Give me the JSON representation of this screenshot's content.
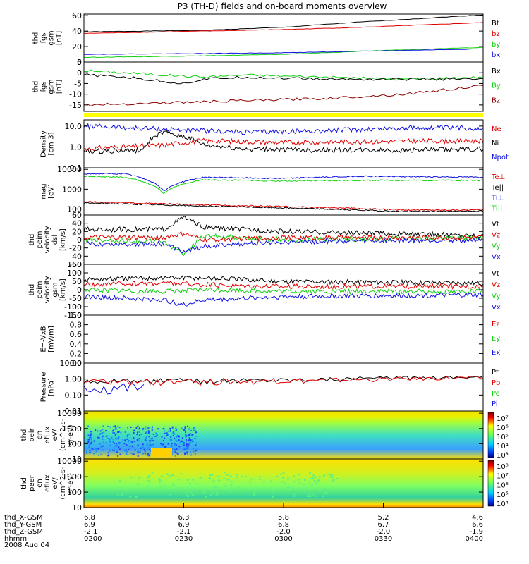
{
  "title": "P3 (TH-D) fields and on-board moments overview",
  "date": "2008 Aug 04",
  "colors": {
    "black": "#000000",
    "red": "#e00000",
    "blue": "#1010e0",
    "green": "#10d010",
    "darkred": "#8b0000",
    "yellow": "#ffff00"
  },
  "chart_data": [
    {
      "type": "line",
      "ylabel": [
        "thd",
        "fgs",
        "gsm",
        "[nT]"
      ],
      "yticks": [
        0,
        20,
        40,
        60
      ],
      "ylim": [
        0,
        62
      ],
      "legend": [
        {
          "name": "Bt",
          "color": "black"
        },
        {
          "name": "bz",
          "color": "red"
        },
        {
          "name": "by",
          "color": "green"
        },
        {
          "name": "bx",
          "color": "blue"
        }
      ],
      "series": [
        {
          "name": "Bt",
          "color": "black",
          "x": [
            0,
            0.3,
            0.5,
            0.7,
            1
          ],
          "y": [
            39,
            41,
            45,
            52,
            61
          ]
        },
        {
          "name": "bz",
          "color": "red",
          "x": [
            0,
            0.3,
            0.5,
            0.7,
            1
          ],
          "y": [
            37,
            40,
            42,
            45,
            51
          ]
        },
        {
          "name": "by",
          "color": "green",
          "x": [
            0,
            0.3,
            0.5,
            0.7,
            1
          ],
          "y": [
            6,
            8,
            10,
            14,
            19
          ]
        },
        {
          "name": "bx",
          "color": "blue",
          "x": [
            0,
            0.3,
            0.5,
            0.7,
            1
          ],
          "y": [
            10,
            11,
            12,
            14,
            17
          ]
        }
      ]
    },
    {
      "type": "line",
      "ylabel": [
        "thd",
        "fgs",
        "gsm",
        "[nT]"
      ],
      "yticks": [
        -15,
        -10,
        -5,
        0,
        5
      ],
      "ylim": [
        -18,
        5
      ],
      "legend": [
        {
          "name": "Bx",
          "color": "black"
        },
        {
          "name": "By",
          "color": "green"
        },
        {
          "name": "Bz",
          "color": "darkred"
        }
      ],
      "series": [
        {
          "name": "By",
          "color": "green",
          "x": [
            0,
            0.1,
            0.2,
            0.3,
            0.4,
            0.6,
            0.8,
            1
          ],
          "y": [
            1,
            0,
            -1,
            -2,
            -1,
            -2,
            -3,
            -2
          ]
        },
        {
          "name": "Bx",
          "color": "black",
          "x": [
            0,
            0.1,
            0.2,
            0.25,
            0.3,
            0.4,
            0.6,
            0.8,
            1
          ],
          "y": [
            -1,
            -2,
            -4,
            -5,
            -3,
            -2,
            -3,
            -3,
            -3
          ]
        },
        {
          "name": "Bz",
          "color": "darkred",
          "x": [
            0,
            0.2,
            0.4,
            0.6,
            0.8,
            1
          ],
          "y": [
            -15,
            -14,
            -13,
            -12,
            -10,
            -6
          ]
        }
      ]
    },
    {
      "type": "line",
      "ylabel": [
        "Density",
        "[cm-3]"
      ],
      "yticks": [
        "10.0",
        "1.0",
        "0.1"
      ],
      "ylog": true,
      "ylim": [
        0.1,
        20
      ],
      "legend": [
        {
          "name": "Ne",
          "color": "red"
        },
        {
          "name": "Ni",
          "color": "black"
        },
        {
          "name": "Npot",
          "color": "blue"
        }
      ],
      "series": [
        {
          "name": "Npot",
          "color": "blue",
          "x": [
            0,
            0.2,
            0.4,
            0.6,
            0.8,
            1
          ],
          "y": [
            10,
            7,
            5,
            6,
            8,
            8
          ]
        },
        {
          "name": "Ne",
          "color": "red",
          "x": [
            0,
            0.2,
            0.3,
            0.5,
            0.7,
            1
          ],
          "y": [
            0.8,
            1.2,
            2,
            1.6,
            1.8,
            2
          ]
        },
        {
          "name": "Ni",
          "color": "black",
          "x": [
            0,
            0.15,
            0.2,
            0.3,
            0.4,
            0.6,
            0.8,
            1
          ],
          "y": [
            0.6,
            0.7,
            5,
            1.2,
            0.8,
            0.7,
            0.7,
            0.8
          ]
        }
      ]
    },
    {
      "type": "line",
      "ylabel": [
        "mag",
        "[eV]"
      ],
      "yticks": [
        "10000",
        "1000",
        "100"
      ],
      "ylog": true,
      "ylim": [
        50,
        12000
      ],
      "legend": [
        {
          "name": "Te⊥",
          "color": "red"
        },
        {
          "name": "Te||",
          "color": "black"
        },
        {
          "name": "Ti⊥",
          "color": "blue"
        },
        {
          "name": "Ti||",
          "color": "green"
        }
      ],
      "series": [
        {
          "name": "Ti⊥",
          "color": "blue",
          "x": [
            0,
            0.1,
            0.2,
            0.3,
            0.5,
            0.7,
            1
          ],
          "y": [
            6000,
            6000,
            800,
            4000,
            3500,
            4500,
            4000
          ]
        },
        {
          "name": "Ti||",
          "color": "green",
          "x": [
            0,
            0.1,
            0.2,
            0.3,
            0.5,
            0.7,
            1
          ],
          "y": [
            4500,
            4000,
            600,
            3000,
            2600,
            2800,
            2800
          ]
        },
        {
          "name": "Te⊥",
          "color": "red",
          "x": [
            0,
            0.3,
            0.6,
            0.8,
            1
          ],
          "y": [
            230,
            160,
            120,
            90,
            90
          ]
        },
        {
          "name": "Te||",
          "color": "black",
          "x": [
            0,
            0.3,
            0.6,
            0.8,
            1
          ],
          "y": [
            200,
            140,
            100,
            75,
            80
          ]
        }
      ]
    },
    {
      "type": "line",
      "ylabel": [
        "thd",
        "peim",
        "velocity",
        "dsl",
        "[km/s]"
      ],
      "yticks": [
        -60,
        -40,
        -20,
        0,
        20,
        40,
        60
      ],
      "ylim": [
        -60,
        60
      ],
      "legend": [
        {
          "name": "Vt",
          "color": "black"
        },
        {
          "name": "Vz",
          "color": "red"
        },
        {
          "name": "Vy",
          "color": "green"
        },
        {
          "name": "Vx",
          "color": "blue"
        }
      ],
      "series": [
        {
          "name": "Vt",
          "color": "black",
          "x": [
            0,
            0.2,
            0.25,
            0.3,
            0.5,
            1
          ],
          "y": [
            25,
            25,
            55,
            30,
            20,
            10
          ]
        },
        {
          "name": "Vy",
          "color": "green",
          "x": [
            0,
            0.2,
            0.25,
            0.3,
            0.5,
            1
          ],
          "y": [
            0,
            -5,
            -35,
            10,
            0,
            5
          ]
        },
        {
          "name": "Vx",
          "color": "blue",
          "x": [
            0,
            0.2,
            0.25,
            0.3,
            0.5,
            1
          ],
          "y": [
            -10,
            -10,
            -30,
            -15,
            -5,
            0
          ]
        },
        {
          "name": "Vz",
          "color": "red",
          "x": [
            0,
            0.2,
            0.25,
            0.3,
            0.5,
            1
          ],
          "y": [
            5,
            5,
            15,
            0,
            5,
            5
          ]
        }
      ]
    },
    {
      "type": "line",
      "ylabel": [
        "thd",
        "peim",
        "velocity",
        "gsm",
        "[km/s]"
      ],
      "yticks": [
        -150,
        -100,
        -50,
        0,
        50,
        100,
        150
      ],
      "ylim": [
        -150,
        150
      ],
      "legend": [
        {
          "name": "Vt",
          "color": "black"
        },
        {
          "name": "Vz",
          "color": "red"
        },
        {
          "name": "Vy",
          "color": "green"
        },
        {
          "name": "Vx",
          "color": "blue"
        }
      ],
      "series": [
        {
          "name": "Vt",
          "color": "black",
          "x": [
            0,
            0.2,
            0.3,
            0.5,
            1
          ],
          "y": [
            60,
            70,
            70,
            50,
            40
          ]
        },
        {
          "name": "Vz",
          "color": "red",
          "x": [
            0,
            0.2,
            0.3,
            0.5,
            1
          ],
          "y": [
            30,
            40,
            30,
            20,
            20
          ]
        },
        {
          "name": "Vy",
          "color": "green",
          "x": [
            0,
            0.2,
            0.3,
            0.5,
            1
          ],
          "y": [
            0,
            -10,
            0,
            -10,
            -10
          ]
        },
        {
          "name": "Vx",
          "color": "blue",
          "x": [
            0,
            0.2,
            0.25,
            0.3,
            0.5,
            1
          ],
          "y": [
            -40,
            -60,
            -90,
            -60,
            -40,
            -30
          ]
        }
      ]
    },
    {
      "type": "line",
      "ylabel": [
        "E=-VxB",
        "[mV/m]"
      ],
      "yticks": [
        "0.0",
        "0.2",
        "0.4",
        "0.6",
        "0.8",
        "1.0"
      ],
      "ylim": [
        0,
        1
      ],
      "legend": [
        {
          "name": "Ez",
          "color": "red"
        },
        {
          "name": "Ey",
          "color": "green"
        },
        {
          "name": "Ex",
          "color": "blue"
        }
      ],
      "series": []
    },
    {
      "type": "line",
      "ylabel": [
        "Pressure",
        "[nPa]"
      ],
      "yticks": [
        "10.00",
        "1.00",
        "0.10",
        "0.01"
      ],
      "ylog": true,
      "ylim": [
        0.01,
        10
      ],
      "legend": [
        {
          "name": "Pt",
          "color": "black"
        },
        {
          "name": "Pb",
          "color": "red"
        },
        {
          "name": "Pe",
          "color": "green"
        },
        {
          "name": "Pi",
          "color": "blue"
        }
      ],
      "series": [
        {
          "name": "Pt",
          "color": "black",
          "x": [
            0,
            0.3,
            0.6,
            1
          ],
          "y": [
            0.75,
            0.8,
            1.0,
            1.4
          ]
        },
        {
          "name": "Pb",
          "color": "red",
          "x": [
            0,
            0.3,
            0.6,
            1
          ],
          "y": [
            0.65,
            0.7,
            0.85,
            1.25
          ]
        },
        {
          "name": "Pi",
          "color": "blue",
          "x": [
            0,
            0.5,
            1
          ],
          "y": [
            0.25,
            0.25,
            0.25
          ]
        },
        {
          "name": "Pe",
          "color": "green",
          "x": [
            0,
            0.3,
            0.6,
            1
          ],
          "y": [
            0.04,
            0.045,
            0.04,
            0.04
          ]
        }
      ]
    },
    {
      "type": "heatmap",
      "ylabel": [
        "thd",
        "peir",
        "en",
        "eflux",
        "eV/",
        "(cm^2-s-",
        "sr-eV)"
      ],
      "yticks": [
        "10000",
        "1000",
        "100",
        "10"
      ],
      "colorbar_ticks": [
        "10⁷",
        "10⁶",
        "10⁵",
        "10⁴",
        "10³"
      ]
    },
    {
      "type": "heatmap",
      "ylabel": [
        "thd",
        "peer",
        "en",
        "eflux",
        "eV/",
        "(cm^2-s-",
        "sr-eV)"
      ],
      "yticks": [
        "10000",
        "1000",
        "100",
        "10"
      ],
      "colorbar_ticks": [
        "10⁸",
        "10⁷",
        "10⁶",
        "10⁵",
        "10⁴"
      ]
    }
  ],
  "xaxis": {
    "row_labels": [
      "thd_X-GSM",
      "thd_Y-GSM",
      "thd_Z-GSM",
      "hhmm"
    ],
    "columns": [
      [
        "6.8",
        "6.9",
        "-2.1",
        "0200"
      ],
      [
        "6.3",
        "6.9",
        "-2.1",
        "0230"
      ],
      [
        "5.8",
        "6.8",
        "-2.0",
        "0300"
      ],
      [
        "5.2",
        "6.7",
        "-2.0",
        "0330"
      ],
      [
        "4.6",
        "6.6",
        "-1.9",
        "0400"
      ]
    ]
  }
}
